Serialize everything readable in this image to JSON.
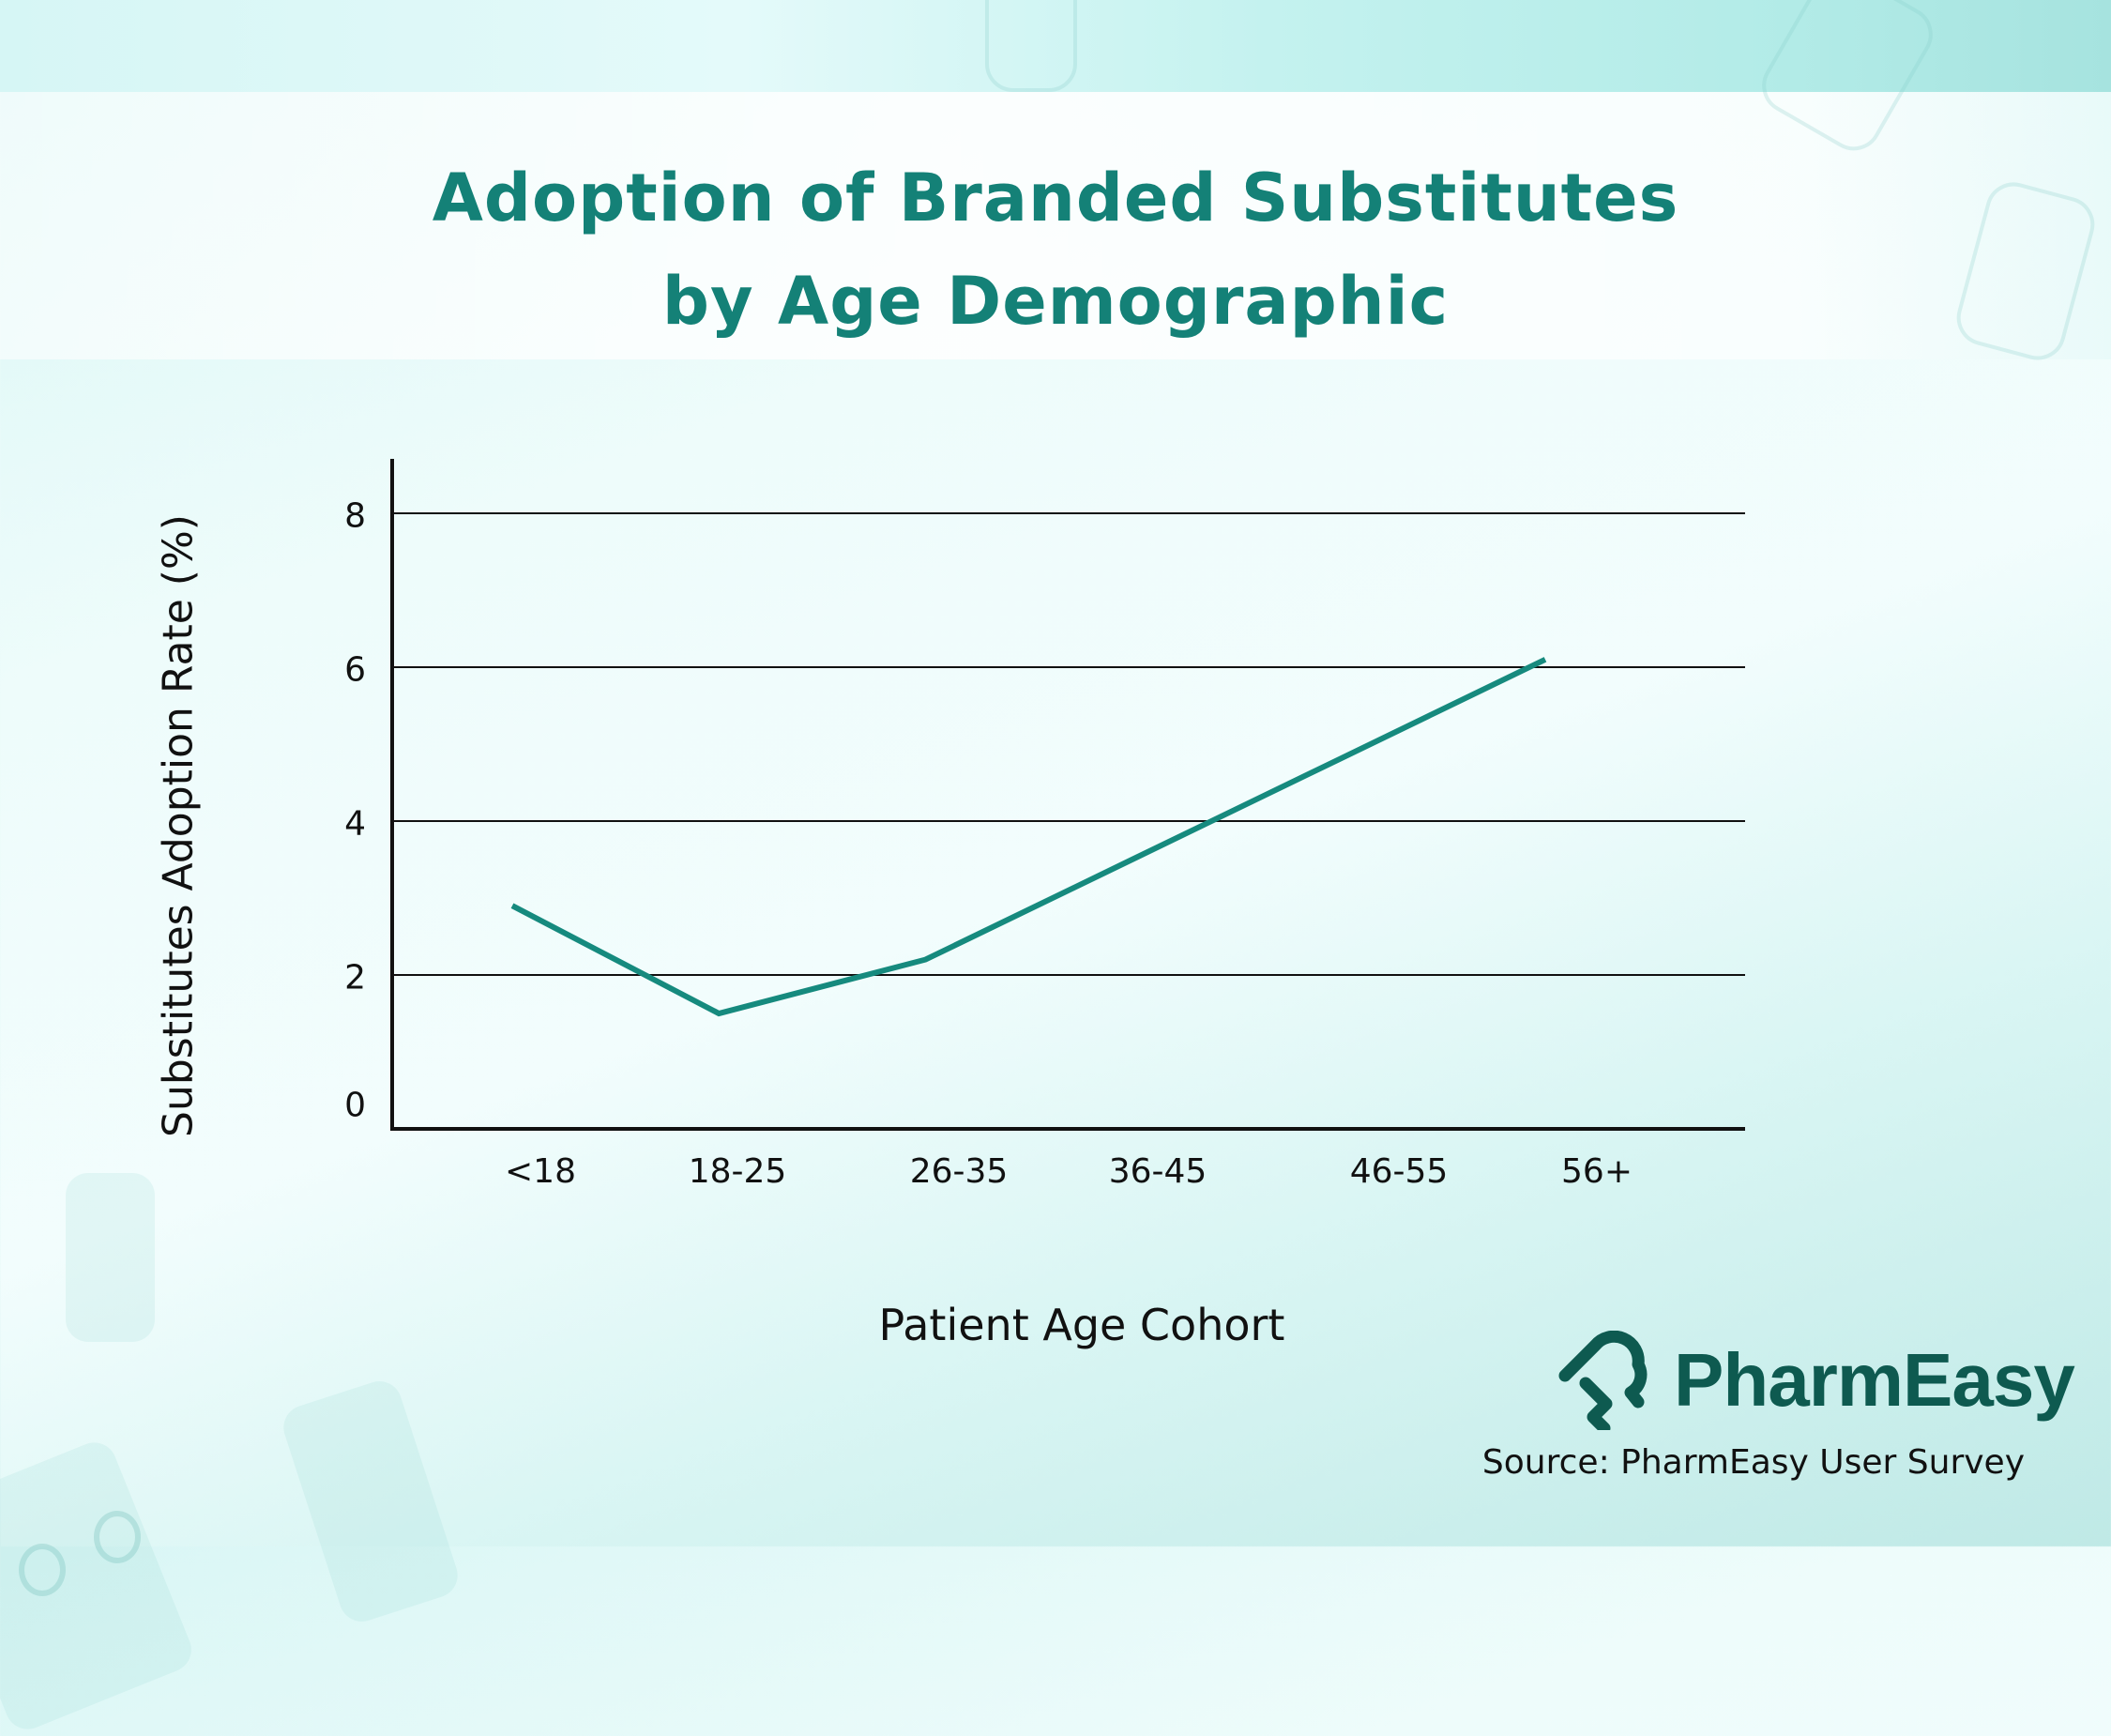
{
  "chart_data": {
    "type": "line",
    "title": "Adoption of Branded Substitutes by Age Demographic",
    "title_lines": [
      "Adoption of Branded Substitutes",
      "by Age Demographic"
    ],
    "xlabel": "Patient Age Cohort",
    "ylabel": "Substitutes Adoption Rate (%)",
    "categories": [
      "<18",
      "18-25",
      "26-35",
      "36-45",
      "46-55",
      "56+"
    ],
    "series": [
      {
        "name": "Substitutes Adoption Rate (%)",
        "values": [
          2.9,
          1.5,
          2.2,
          3.5,
          4.8,
          6.1
        ],
        "color": "#168a7e"
      }
    ],
    "yticks": [
      0,
      2,
      4,
      6,
      8
    ],
    "ylim": [
      0,
      8.7
    ],
    "grid": true,
    "legend": null
  },
  "branding": {
    "logo_text": "PharmEasy",
    "logo_color": "#0e5a50",
    "source": "Source: PharmEasy User Survey"
  },
  "colors": {
    "title": "#148177",
    "line": "#168a7e",
    "axis": "#111111"
  }
}
